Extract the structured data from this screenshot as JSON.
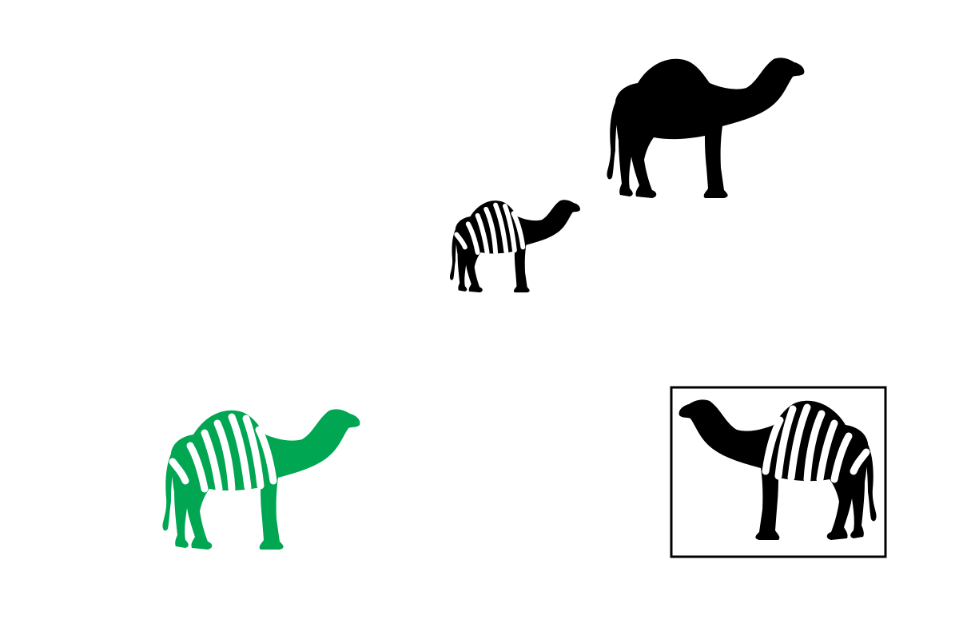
{
  "colors": {
    "background": "#ffffff",
    "black": "#000000",
    "green": "#00a651",
    "stripe": "#ffffff"
  },
  "figures": [
    {
      "id": "camel-plain-large",
      "icon": "camel-icon",
      "fill": "#000000",
      "striped": false,
      "facing": "right",
      "framed": false
    },
    {
      "id": "camel-striped-small",
      "icon": "striped-camel-icon",
      "fill": "#000000",
      "striped": true,
      "facing": "right",
      "framed": false
    },
    {
      "id": "camel-striped-green",
      "icon": "striped-camel-icon",
      "fill": "#00a651",
      "striped": true,
      "facing": "right",
      "framed": false
    },
    {
      "id": "camel-striped-framed",
      "icon": "striped-camel-icon",
      "fill": "#000000",
      "striped": true,
      "facing": "left",
      "framed": true
    }
  ]
}
